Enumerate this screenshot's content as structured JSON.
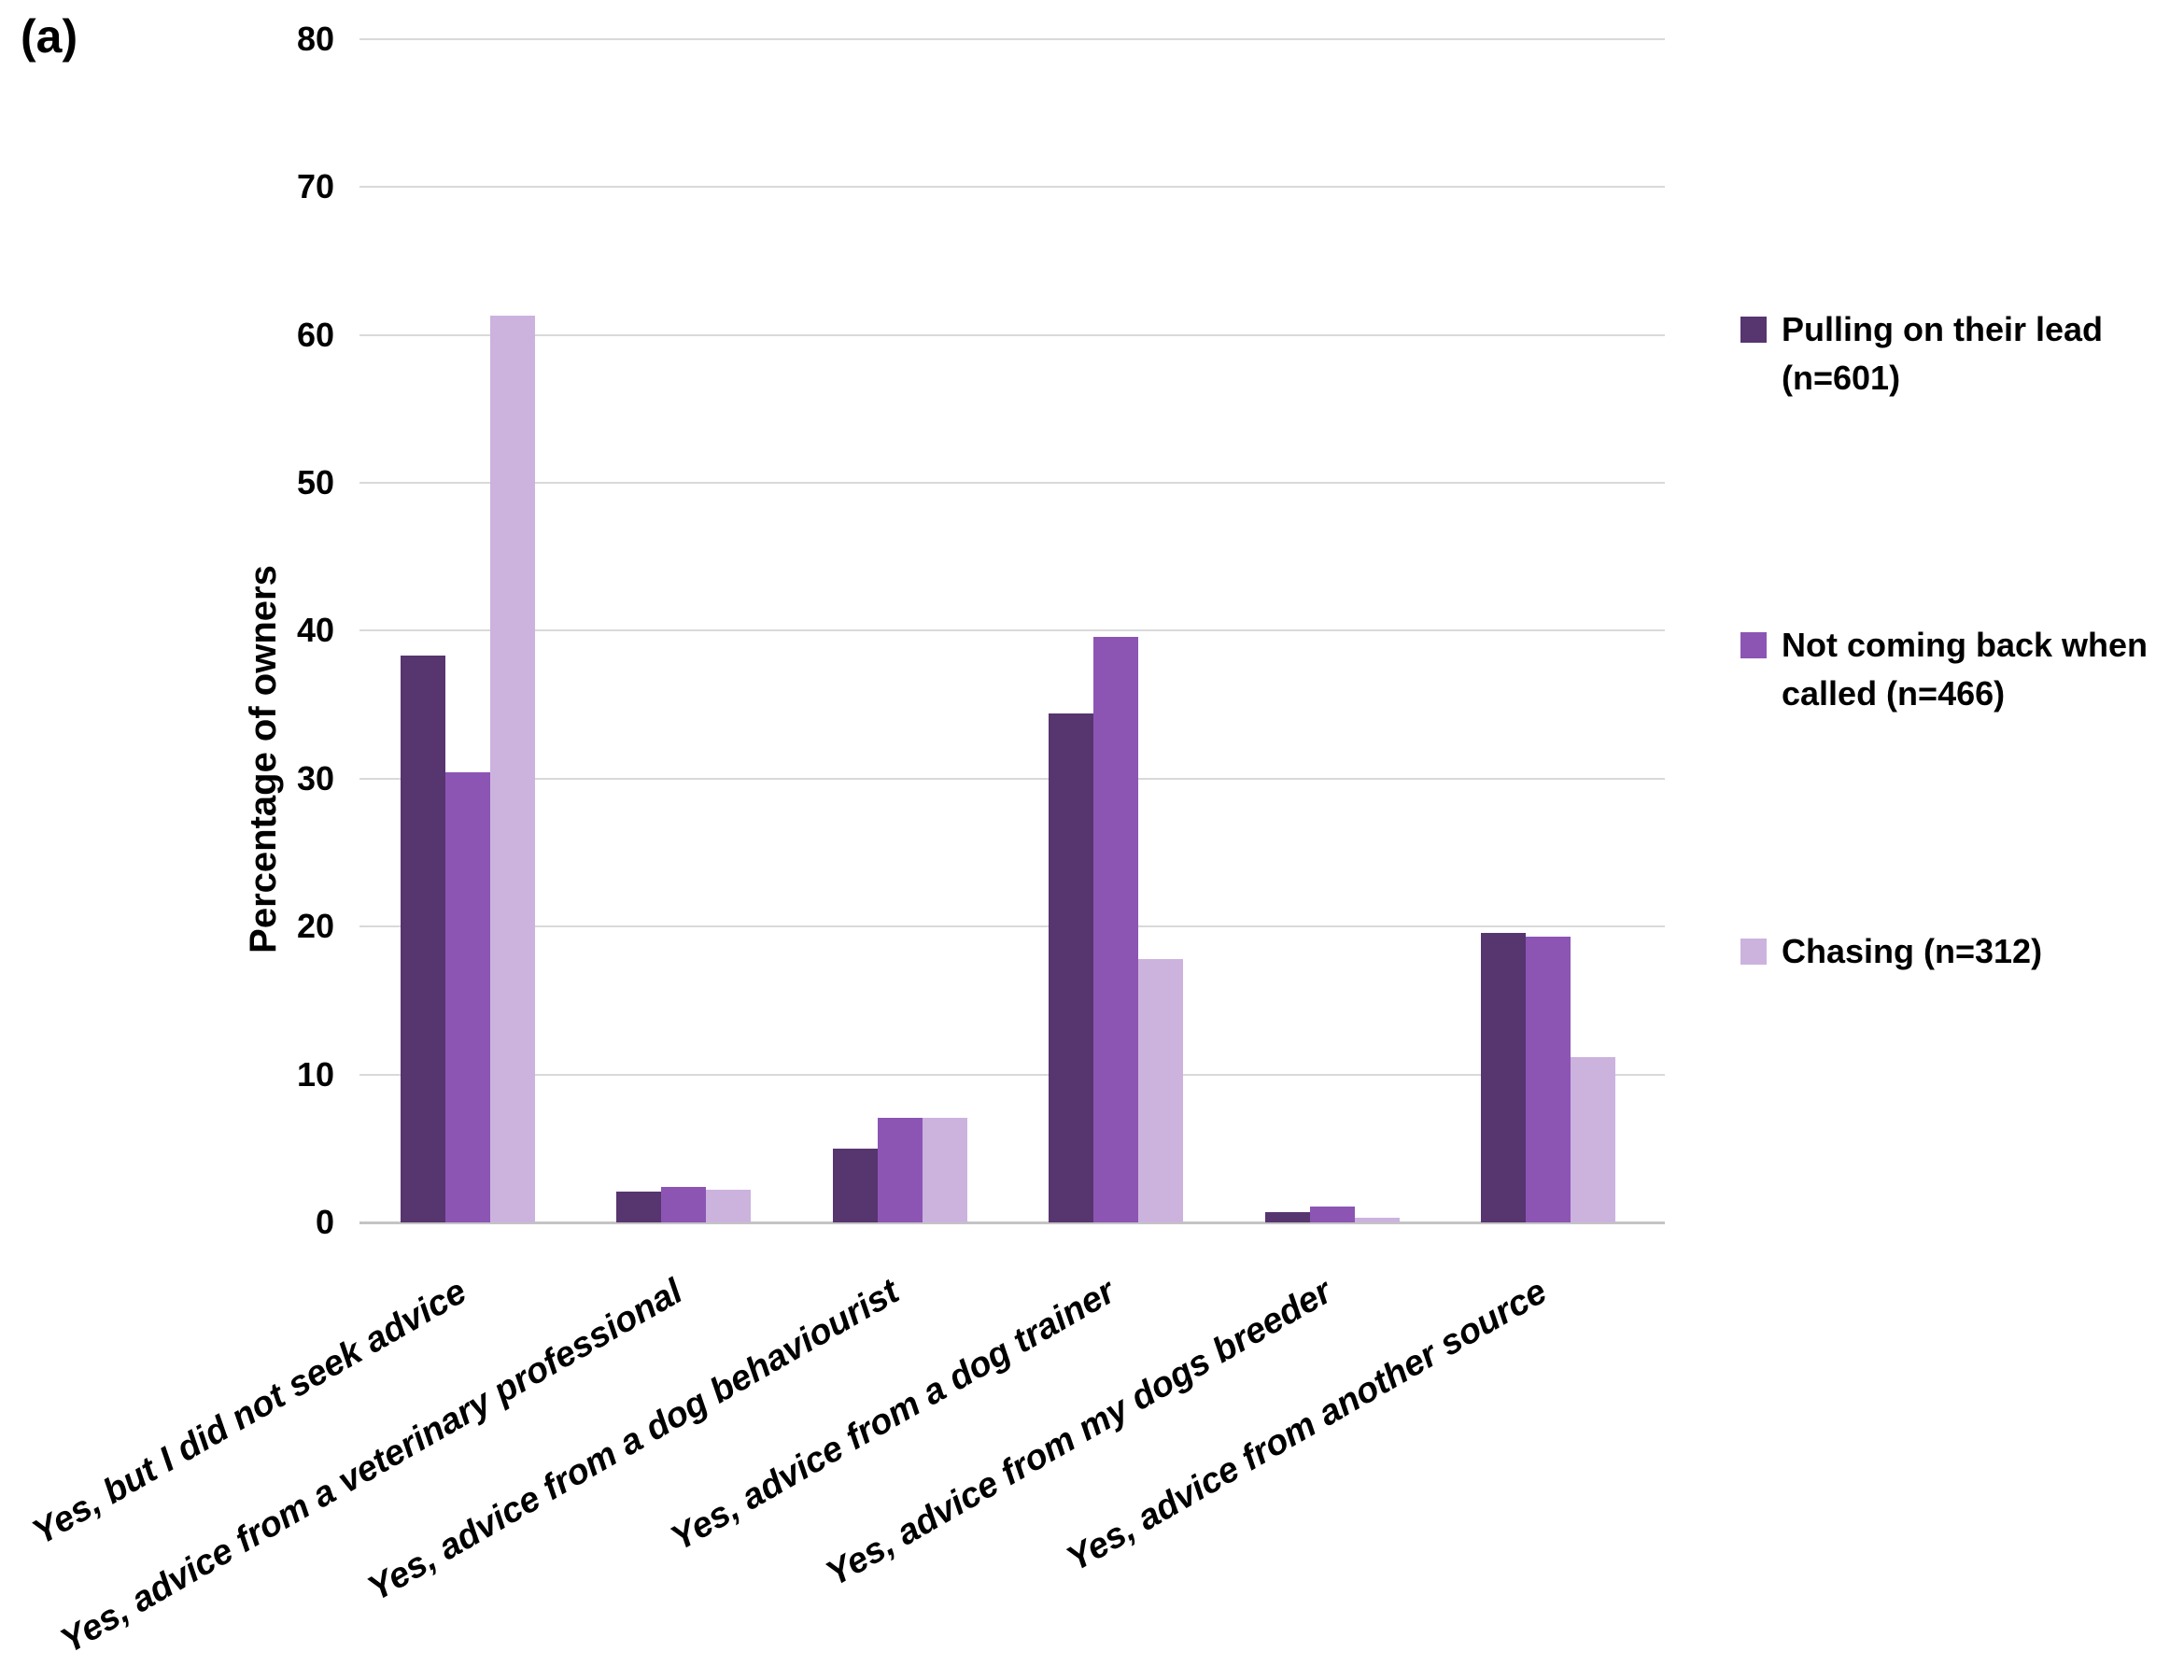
{
  "figure_label": "(a)",
  "y_axis": {
    "title": "Percentage of owners",
    "ticks": [
      0,
      10,
      20,
      30,
      40,
      50,
      60,
      70,
      80
    ]
  },
  "legend": [
    {
      "label": "Pulling on their lead (n=601)",
      "lines": [
        "Pulling on their lead",
        "(n=601)"
      ],
      "color": "#57356f"
    },
    {
      "label": "Not coming back when called (n=466)",
      "lines": [
        "Not coming back when",
        "called (n=466)"
      ],
      "color": "#8c55b4"
    },
    {
      "label": "Chasing (n=312)",
      "lines": [
        "Chasing (n=312)"
      ],
      "color": "#cbb3de"
    }
  ],
  "chart_data": {
    "type": "bar",
    "title": "",
    "xlabel": "",
    "ylabel": "Percentage of owners",
    "ylim": [
      0,
      80
    ],
    "gridline_step": 10,
    "grid": true,
    "legend_position": "right",
    "categories": [
      "Yes, but I did not seek advice",
      "Yes, advice from a veterinary professional",
      "Yes, advice from a dog behaviourist",
      "Yes, advice from a dog trainer",
      "Yes, advice from my dogs breeder",
      "Yes, advice from another source"
    ],
    "series": [
      {
        "name": "Pulling on their lead (n=601)",
        "color": "#57356f",
        "values": [
          38.3,
          2.1,
          5.0,
          34.4,
          0.7,
          19.6
        ]
      },
      {
        "name": "Not coming back when called (n=466)",
        "color": "#8c55b4",
        "values": [
          30.4,
          2.4,
          7.1,
          39.6,
          1.1,
          19.3
        ]
      },
      {
        "name": "Chasing (n=312)",
        "color": "#cbb3de",
        "values": [
          61.3,
          2.2,
          7.1,
          17.8,
          0.3,
          11.2
        ]
      }
    ]
  }
}
